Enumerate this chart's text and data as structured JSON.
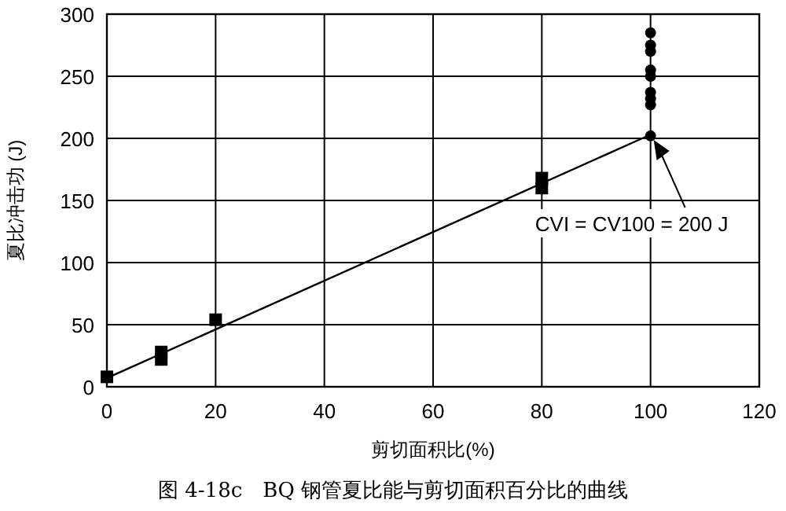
{
  "chart_data": {
    "type": "scatter",
    "xlabel": "剪切面积比(%)",
    "ylabel": "夏比冲击功 (J)",
    "xlim": [
      0,
      120
    ],
    "ylim": [
      0,
      300
    ],
    "xticks": [
      0,
      20,
      40,
      60,
      80,
      100,
      120
    ],
    "yticks": [
      0,
      50,
      100,
      150,
      200,
      250,
      300
    ],
    "grid": true,
    "series": [
      {
        "marker": "square",
        "color": "#000000",
        "x": [
          0,
          10,
          10,
          20,
          80,
          80
        ],
        "values": [
          8,
          22,
          28,
          54,
          160,
          168
        ]
      },
      {
        "marker": "circle",
        "color": "#000000",
        "x": [
          100,
          100,
          100,
          100,
          100,
          100,
          100,
          100,
          100
        ],
        "values": [
          202,
          227,
          232,
          237,
          250,
          255,
          270,
          275,
          285
        ]
      },
      {
        "type": "line",
        "marker": "none",
        "color": "#000000",
        "x": [
          0,
          100
        ],
        "values": [
          7,
          203
        ]
      }
    ],
    "annotations": [
      {
        "text": "CVI = CV100 = 200 J",
        "x": 100,
        "y": 200
      },
      "图 4-18c　BQ 钢管夏比能与剪切面积百分比的曲线"
    ]
  }
}
